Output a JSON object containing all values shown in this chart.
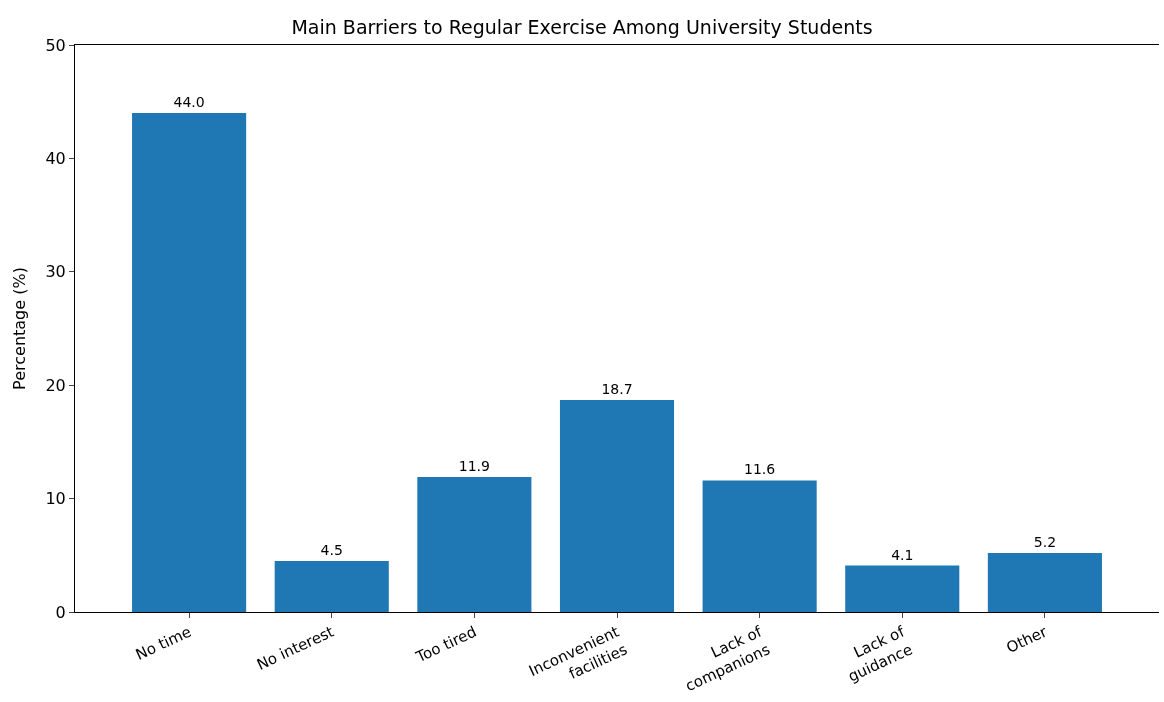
{
  "chart_data": {
    "type": "bar",
    "title": "Main Barriers to Regular Exercise Among University Students",
    "ylabel": "Percentage (%)",
    "categories": [
      "No time",
      "No interest",
      "Too tired",
      "Inconvenient\nfacilities",
      "Lack of\ncompanions",
      "Lack of\nguidance",
      "Other"
    ],
    "values": [
      44.0,
      4.5,
      11.9,
      18.7,
      11.6,
      4.1,
      5.2
    ],
    "value_labels": [
      "44.0",
      "4.5",
      "11.9",
      "18.7",
      "11.6",
      "4.1",
      "5.2"
    ],
    "color": "#1f77b4",
    "ylim": [
      0,
      50
    ],
    "yticks": [
      0,
      10,
      20,
      30,
      40,
      50
    ]
  }
}
